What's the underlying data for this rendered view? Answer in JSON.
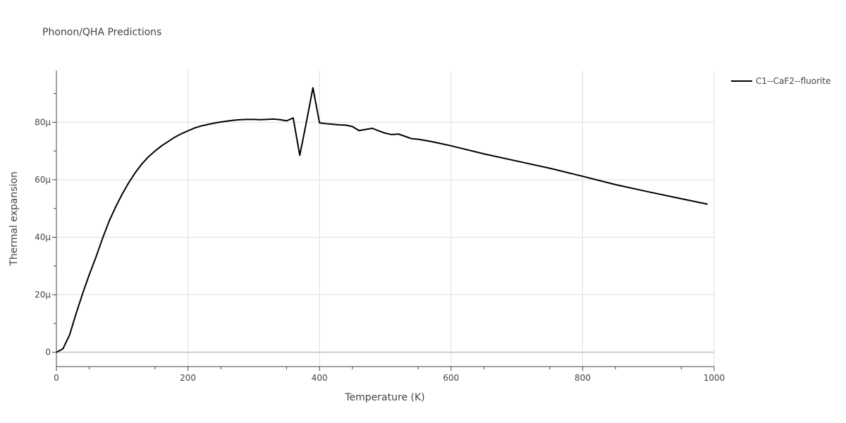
{
  "chart_data": {
    "type": "line",
    "title": "Phonon/QHA Predictions",
    "xlabel": "Temperature (K)",
    "ylabel": "Thermal expansion",
    "xlim": [
      0,
      1000
    ],
    "ylim": [
      -5,
      98
    ],
    "grid": true,
    "legend_position": "top-right",
    "x_ticks": [
      {
        "value": 0,
        "label": "0"
      },
      {
        "value": 200,
        "label": "200"
      },
      {
        "value": 400,
        "label": "400"
      },
      {
        "value": 600,
        "label": "600"
      },
      {
        "value": 800,
        "label": "800"
      },
      {
        "value": 1000,
        "label": "1000"
      }
    ],
    "y_ticks": [
      {
        "value": 0,
        "label": "0"
      },
      {
        "value": 20,
        "label": "20µ"
      },
      {
        "value": 40,
        "label": "40µ"
      },
      {
        "value": 60,
        "label": "60µ"
      },
      {
        "value": 80,
        "label": "80µ"
      }
    ],
    "series": [
      {
        "name": "C1--CaF2--fluorite",
        "color": "#000000",
        "x": [
          0,
          10,
          20,
          30,
          40,
          50,
          60,
          70,
          80,
          90,
          100,
          110,
          120,
          130,
          140,
          150,
          160,
          170,
          180,
          190,
          200,
          210,
          220,
          230,
          240,
          250,
          260,
          270,
          280,
          290,
          300,
          310,
          320,
          330,
          340,
          350,
          360,
          370,
          380,
          390,
          400,
          410,
          420,
          430,
          440,
          450,
          460,
          470,
          480,
          490,
          500,
          510,
          520,
          530,
          540,
          550,
          560,
          570,
          580,
          600,
          650,
          700,
          750,
          800,
          850,
          900,
          950,
          990
        ],
        "y": [
          0,
          1.2,
          6,
          13.5,
          20.5,
          27,
          33,
          39.5,
          45.5,
          50.5,
          55,
          59,
          62.5,
          65.5,
          68,
          70,
          71.8,
          73.3,
          74.8,
          76,
          77,
          78,
          78.7,
          79.2,
          79.7,
          80.1,
          80.4,
          80.7,
          80.9,
          81.0,
          81.0,
          80.9,
          81.0,
          81.1,
          80.9,
          80.5,
          81.5,
          68.5,
          80,
          92,
          79.8,
          79.5,
          79.3,
          79.1,
          79.0,
          78.5,
          77.1,
          77.5,
          77.9,
          77.0,
          76.2,
          75.7,
          75.9,
          75.1,
          74.3,
          74.1,
          73.7,
          73.3,
          72.8,
          71.8,
          69.0,
          66.5,
          64.0,
          61.2,
          58.3,
          55.8,
          53.4,
          51.5
        ]
      }
    ]
  }
}
